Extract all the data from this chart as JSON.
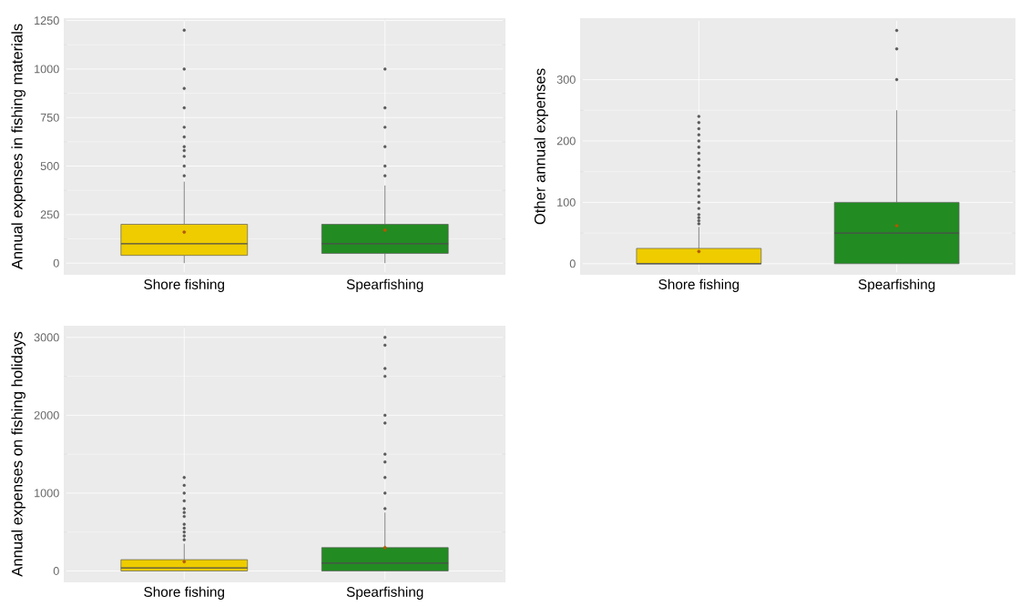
{
  "chart_data": [
    {
      "type": "box",
      "ylabel": "Annual expenses in fishing materials",
      "categories": [
        "Shore fishing",
        "Spearfishing"
      ],
      "colors": [
        "#eecc00",
        "#228b22"
      ],
      "ylim": [
        -60,
        1262
      ],
      "yticks": [
        0,
        250,
        500,
        750,
        1000,
        1250
      ],
      "grid": true,
      "boxes": [
        {
          "low": 0,
          "q1": 40,
          "median": 100,
          "q3": 200,
          "high": 420,
          "mean": 160,
          "outliers": [
            450,
            500,
            550,
            580,
            600,
            650,
            700,
            800,
            900,
            1000,
            1200
          ]
        },
        {
          "low": 0,
          "q1": 50,
          "median": 100,
          "q3": 200,
          "high": 400,
          "mean": 170,
          "outliers": [
            450,
            500,
            600,
            700,
            800,
            1000
          ]
        }
      ]
    },
    {
      "type": "box",
      "ylabel": "Other annual expenses",
      "categories": [
        "Shore fishing",
        "Spearfishing"
      ],
      "colors": [
        "#eecc00",
        "#228b22"
      ],
      "ylim": [
        -18,
        400
      ],
      "yticks": [
        0,
        100,
        200,
        300
      ],
      "grid": true,
      "boxes": [
        {
          "low": 0,
          "q1": 0,
          "median": 0,
          "q3": 25,
          "high": 60,
          "mean": 20,
          "outliers": [
            65,
            70,
            75,
            80,
            90,
            100,
            110,
            120,
            130,
            140,
            150,
            160,
            170,
            180,
            190,
            200,
            210,
            220,
            230,
            240
          ]
        },
        {
          "low": 0,
          "q1": 0,
          "median": 50,
          "q3": 100,
          "high": 250,
          "mean": 62,
          "outliers": [
            300,
            350,
            380
          ]
        }
      ]
    },
    {
      "type": "box",
      "ylabel": "Annual expenses on fishing holidays",
      "categories": [
        "Shore fishing",
        "Spearfishing"
      ],
      "colors": [
        "#eecc00",
        "#228b22"
      ],
      "ylim": [
        -146,
        3150
      ],
      "yticks": [
        0,
        1000,
        2000,
        3000
      ],
      "grid": true,
      "boxes": [
        {
          "low": 0,
          "q1": 0,
          "median": 40,
          "q3": 145,
          "high": 350,
          "mean": 120,
          "outliers": [
            400,
            450,
            500,
            550,
            600,
            700,
            750,
            800,
            900,
            1000,
            1100,
            1200
          ]
        },
        {
          "low": 0,
          "q1": 0,
          "median": 100,
          "q3": 300,
          "high": 750,
          "mean": 300,
          "outliers": [
            800,
            1000,
            1200,
            1400,
            1500,
            1900,
            2000,
            2500,
            2600,
            2900,
            3000
          ]
        }
      ]
    }
  ]
}
